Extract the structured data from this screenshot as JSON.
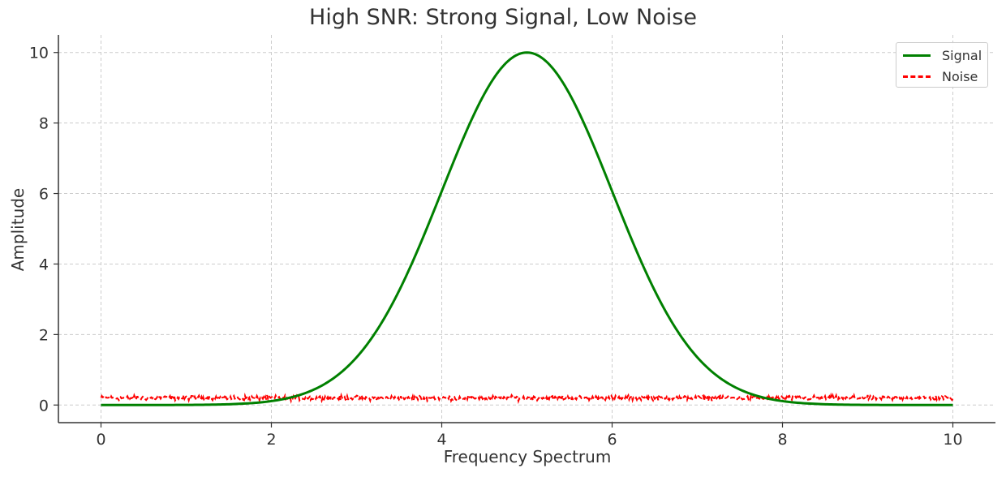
{
  "chart_data": {
    "type": "line",
    "title": "High SNR: Strong Signal, Low Noise",
    "xlabel": "Frequency Spectrum",
    "ylabel": "Amplitude",
    "xlim": [
      -0.5,
      10.5
    ],
    "ylim": [
      -0.5,
      10.5
    ],
    "xticks": [
      0,
      2,
      4,
      6,
      8,
      10
    ],
    "yticks": [
      0,
      2,
      4,
      6,
      8,
      10
    ],
    "grid": true,
    "legend_position": "top-right",
    "series": [
      {
        "name": "Signal",
        "color": "#008000",
        "style": "solid",
        "description": "Gaussian peak, amplitude 10 centered at 5, sigma ~1",
        "amplitude": 10,
        "center": 5,
        "sigma": 1,
        "x_range": [
          0,
          10
        ]
      },
      {
        "name": "Noise",
        "color": "#ff0000",
        "style": "dashed",
        "mean": 0.2,
        "spread": 0.05,
        "x_range": [
          0,
          10
        ]
      }
    ]
  }
}
